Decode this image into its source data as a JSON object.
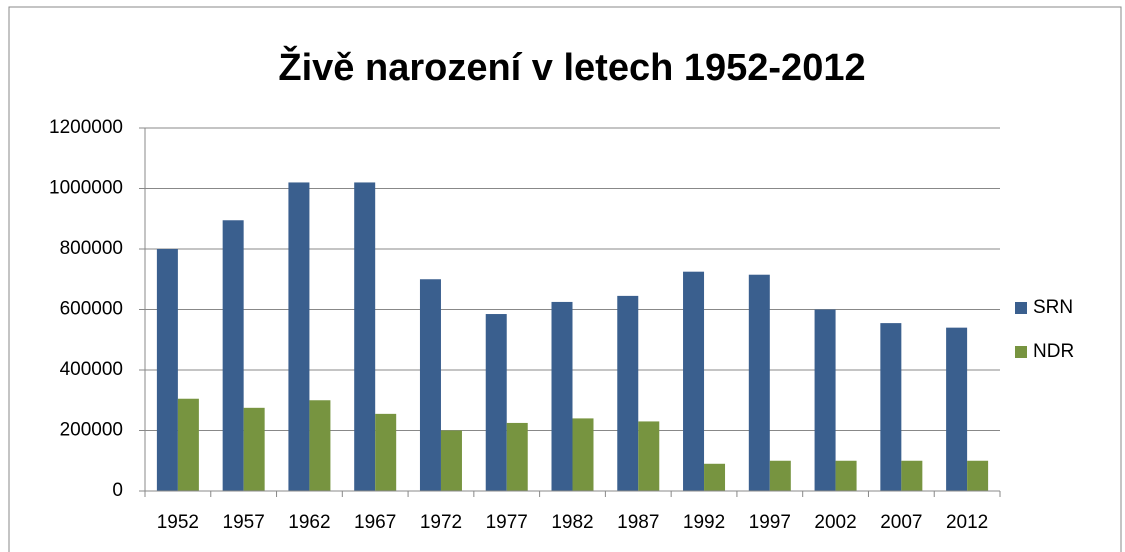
{
  "chart_data": {
    "type": "bar",
    "title": "Živě narození v letech 1952-2012",
    "categories": [
      "1952",
      "1957",
      "1962",
      "1967",
      "1972",
      "1977",
      "1982",
      "1987",
      "1992",
      "1997",
      "2002",
      "2007",
      "2012"
    ],
    "series": [
      {
        "name": "SRN",
        "color": "#3a5f8e",
        "values": [
          800000,
          895000,
          1020000,
          1020000,
          700000,
          585000,
          625000,
          645000,
          725000,
          715000,
          600000,
          555000,
          540000
        ]
      },
      {
        "name": "NDR",
        "color": "#779440",
        "values": [
          305000,
          275000,
          300000,
          255000,
          200000,
          225000,
          240000,
          230000,
          90000,
          100000,
          100000,
          100000,
          100000
        ]
      }
    ],
    "ylim": [
      0,
      1200000
    ],
    "yticks": [
      0,
      200000,
      400000,
      600000,
      800000,
      1000000,
      1200000
    ],
    "grid": true,
    "legend": "right"
  }
}
